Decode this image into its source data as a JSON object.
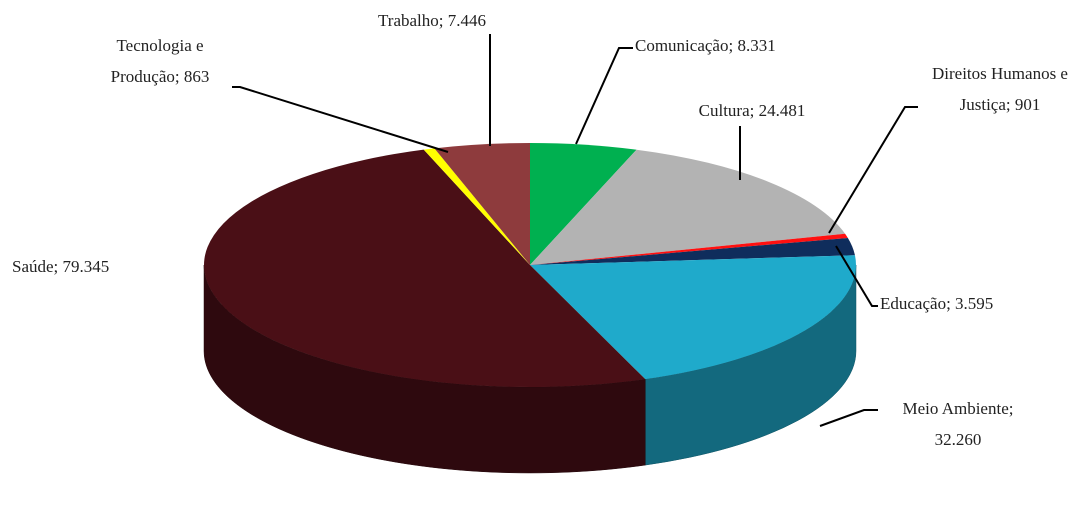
{
  "chart_data": {
    "type": "pie",
    "values": [
      8331,
      24481,
      901,
      3595,
      32260,
      79345,
      863,
      7446
    ],
    "value_labels": [
      "Comunicação; 8.331",
      "Cultura; 24.481",
      "Direitos Humanos e\nJustiça; 901",
      "Educação; 3.595",
      "Meio Ambiente;\n32.260",
      "Saúde; 79.345",
      "Tecnologia e\nProdução; 863",
      "Trabalho; 7.446"
    ],
    "colors": [
      "#00b050",
      "#b3b3b3",
      "#ff1010",
      "#0f2d5c",
      "#1faacb",
      "#4a0f16",
      "#ffff00",
      "#8e3b3d"
    ]
  }
}
